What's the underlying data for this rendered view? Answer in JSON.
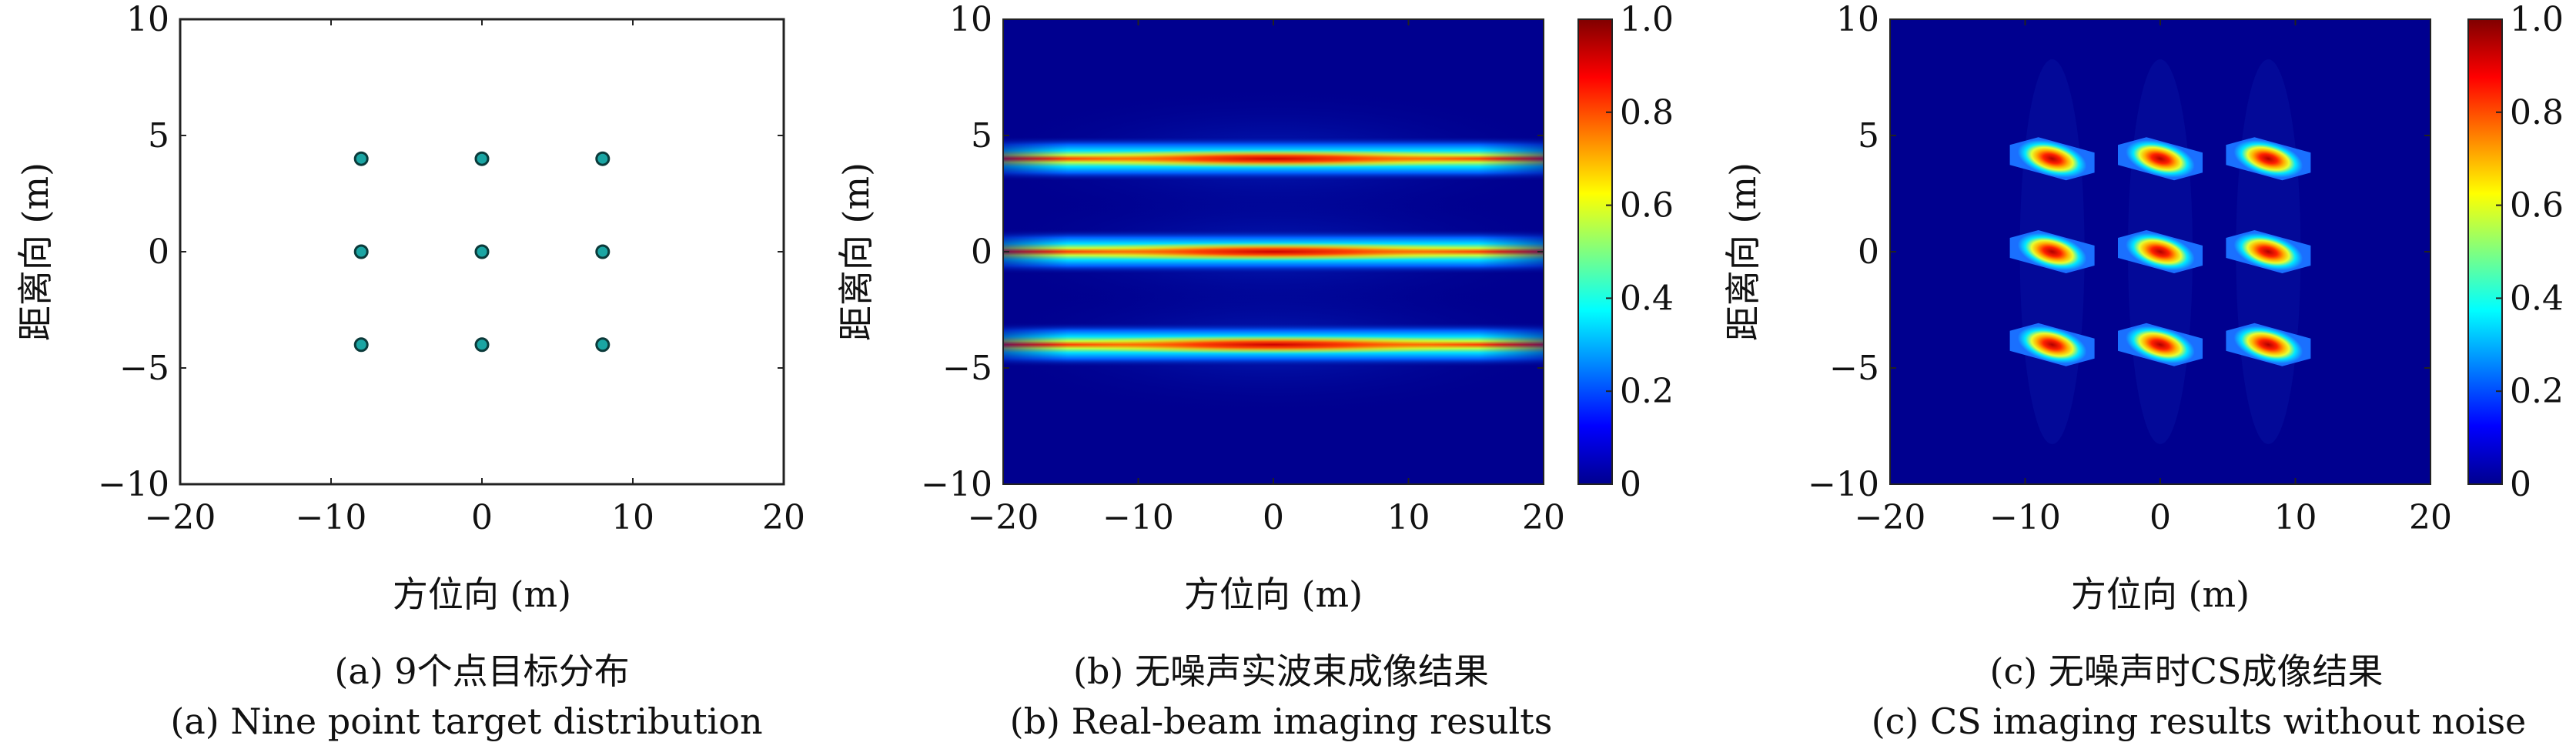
{
  "chart_data": [
    {
      "type": "scatter",
      "xlim": [
        -20,
        20
      ],
      "ylim": [
        -10,
        10
      ],
      "xticks": [
        "−20",
        "−10",
        "0",
        "10",
        "20"
      ],
      "yticks": [
        "10",
        "5",
        "0",
        "−5",
        "−10"
      ],
      "xlabel": "方位向 (m)",
      "ylabel": "距离向 (m)",
      "points": [
        {
          "x": -8,
          "y": 4
        },
        {
          "x": 0,
          "y": 4
        },
        {
          "x": 8,
          "y": 4
        },
        {
          "x": -8,
          "y": 0
        },
        {
          "x": 0,
          "y": 0
        },
        {
          "x": 8,
          "y": 0
        },
        {
          "x": -8,
          "y": -4
        },
        {
          "x": 0,
          "y": -4
        },
        {
          "x": 8,
          "y": -4
        }
      ],
      "marker_color": "#1aa5a3",
      "caption_cn": "(a) 9个点目标分布",
      "caption_en": "(a) Nine point target distribution"
    },
    {
      "type": "heatmap",
      "xlim": [
        -20,
        20
      ],
      "ylim": [
        -10,
        10
      ],
      "xticks": [
        "−20",
        "−10",
        "0",
        "10",
        "20"
      ],
      "yticks": [
        "10",
        "5",
        "0",
        "−5",
        "−10"
      ],
      "xlabel": "方位向 (m)",
      "ylabel": "距离向 (m)",
      "colormap": "jet",
      "clim": [
        0,
        1
      ],
      "colorbar_ticks": [
        "1.0",
        "0.8",
        "0.6",
        "0.4",
        "0.2",
        "0"
      ],
      "bands": [
        {
          "y": 4,
          "x_extent": [
            -20,
            20
          ],
          "peak": 1.0
        },
        {
          "y": 0,
          "x_extent": [
            -20,
            20
          ],
          "peak": 1.0
        },
        {
          "y": -4,
          "x_extent": [
            -20,
            20
          ],
          "peak": 1.0
        }
      ],
      "caption_cn": "(b) 无噪声实波束成像结果",
      "caption_en": "(b) Real-beam imaging results"
    },
    {
      "type": "heatmap",
      "xlim": [
        -20,
        20
      ],
      "ylim": [
        -10,
        10
      ],
      "xticks": [
        "−20",
        "−10",
        "0",
        "10",
        "20"
      ],
      "yticks": [
        "10",
        "5",
        "0",
        "−5",
        "−10"
      ],
      "xlabel": "方位向 (m)",
      "ylabel": "距离向 (m)",
      "colormap": "jet",
      "clim": [
        0,
        1
      ],
      "colorbar_ticks": [
        "1.0",
        "0.8",
        "0.6",
        "0.4",
        "0.2",
        "0"
      ],
      "spots": [
        {
          "x": -8,
          "y": 4,
          "peak": 1.0
        },
        {
          "x": 0,
          "y": 4,
          "peak": 1.0
        },
        {
          "x": 8,
          "y": 4,
          "peak": 1.0
        },
        {
          "x": -8,
          "y": 0,
          "peak": 1.0
        },
        {
          "x": 0,
          "y": 0,
          "peak": 1.0
        },
        {
          "x": 8,
          "y": 0,
          "peak": 1.0
        },
        {
          "x": -8,
          "y": -4,
          "peak": 1.0
        },
        {
          "x": 0,
          "y": -4,
          "peak": 1.0
        },
        {
          "x": 8,
          "y": -4,
          "peak": 1.0
        }
      ],
      "caption_cn": "(c) 无噪声时CS成像结果",
      "caption_en": "(c) CS imaging results without noise"
    }
  ]
}
